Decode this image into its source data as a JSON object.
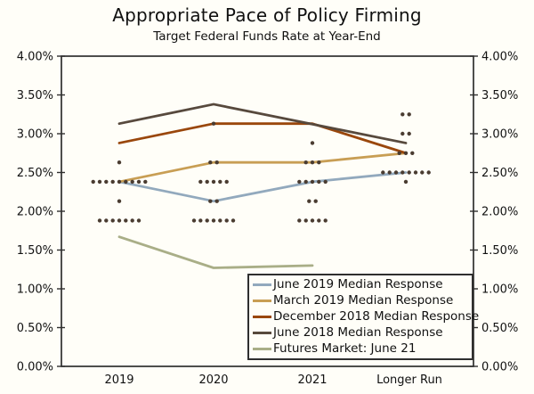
{
  "chart_data": {
    "type": "line",
    "title": "Appropriate Pace of Policy Firming",
    "subtitle": "Target Federal Funds Rate at Year-End",
    "categories": [
      "2019",
      "2020",
      "2021",
      "Longer Run"
    ],
    "y_axis": {
      "min": 0,
      "max": 4,
      "sides": [
        "left",
        "right"
      ],
      "ticks": [
        {
          "value": 4.0,
          "label": "4.00%"
        },
        {
          "value": 3.5,
          "label": "3.50%"
        },
        {
          "value": 3.0,
          "label": "3.00%"
        },
        {
          "value": 2.5,
          "label": "2.50%"
        },
        {
          "value": 2.0,
          "label": "2.00%"
        },
        {
          "value": 1.5,
          "label": "1.50%"
        },
        {
          "value": 1.0,
          "label": "1.00%"
        },
        {
          "value": 0.5,
          "label": "0.50%"
        },
        {
          "value": 0.0,
          "label": "0.00%"
        }
      ]
    },
    "series": [
      {
        "id": "june-2019",
        "name": "June 2019 Median Response",
        "color": "#92a9bd",
        "values": [
          2.38,
          2.13,
          2.38,
          2.5
        ]
      },
      {
        "id": "march-2019",
        "name": "March 2019 Median Response",
        "color": "#c89e54",
        "values": [
          2.38,
          2.63,
          2.63,
          2.75
        ]
      },
      {
        "id": "december-2018",
        "name": "December 2018 Median Response",
        "color": "#9a470c",
        "values": [
          2.88,
          3.13,
          3.13,
          2.75
        ]
      },
      {
        "id": "june-2018",
        "name": "June 2018 Median Response",
        "color": "#57493d",
        "values": [
          3.13,
          3.38,
          null,
          2.88
        ]
      },
      {
        "id": "futures",
        "name": "Futures Market: June 21",
        "color": "#a9ae87",
        "values": [
          1.67,
          1.27,
          1.3,
          null
        ]
      }
    ],
    "dot_color": "#4a3c31",
    "dots": [
      {
        "category": "2019",
        "value": 2.63,
        "count": 1
      },
      {
        "category": "2019",
        "value": 2.38,
        "count": 9
      },
      {
        "category": "2019",
        "value": 2.13,
        "count": 1
      },
      {
        "category": "2019",
        "value": 1.88,
        "count": 7
      },
      {
        "category": "2020",
        "value": 3.13,
        "count": 1
      },
      {
        "category": "2020",
        "value": 2.63,
        "count": 2
      },
      {
        "category": "2020",
        "value": 2.38,
        "count": 5
      },
      {
        "category": "2020",
        "value": 2.13,
        "count": 2
      },
      {
        "category": "2020",
        "value": 1.88,
        "count": 7
      },
      {
        "category": "2021",
        "value": 2.88,
        "count": 1
      },
      {
        "category": "2021",
        "value": 2.63,
        "count": 3
      },
      {
        "category": "2021",
        "value": 2.38,
        "count": 5
      },
      {
        "category": "2021",
        "value": 2.13,
        "count": 2
      },
      {
        "category": "2021",
        "value": 1.88,
        "count": 5
      },
      {
        "category": "Longer Run",
        "value": 3.25,
        "count": 2
      },
      {
        "category": "Longer Run",
        "value": 3.0,
        "count": 2
      },
      {
        "category": "Longer Run",
        "value": 2.75,
        "count": 3
      },
      {
        "category": "Longer Run",
        "value": 2.5,
        "count": 8
      },
      {
        "category": "Longer Run",
        "value": 2.38,
        "count": 1
      }
    ],
    "legend_position": "bottom-right-inside",
    "grid": false,
    "frame_color": "#2f2f2f"
  }
}
